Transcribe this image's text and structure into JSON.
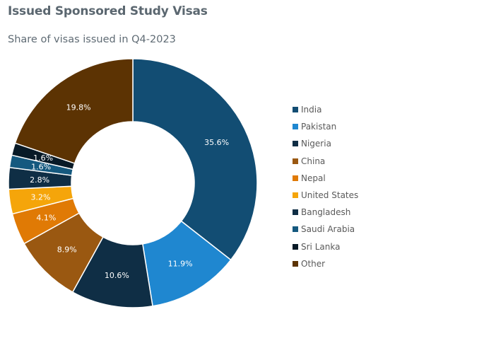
{
  "header": {
    "title": "Issued Sponsored Study Visas",
    "subtitle": "Share of visas issued in Q4-2023"
  },
  "chart_data": {
    "type": "pie",
    "title": "Issued Sponsored Study Visas",
    "subtitle": "Share of visas issued in Q4-2023",
    "donut": true,
    "legend_position": "right",
    "unit": "%",
    "categories": [
      "India",
      "Pakistan",
      "Nigeria",
      "China",
      "Nepal",
      "United States",
      "Bangladesh",
      "Saudi Arabia",
      "Sri Lanka",
      "Other"
    ],
    "values": [
      35.6,
      11.9,
      10.6,
      8.9,
      4.1,
      3.2,
      2.8,
      1.6,
      1.6,
      19.8
    ],
    "labels": [
      "35.6%",
      "11.9%",
      "10.6%",
      "8.9%",
      "4.1%",
      "3.2%",
      "2.8%",
      "1.6%",
      "1.6%",
      "19.8%"
    ],
    "colors": [
      "#124d73",
      "#1f87d0",
      "#0f2e45",
      "#9a5811",
      "#e07a05",
      "#f5a50a",
      "#0f2e45",
      "#15597f",
      "#081a27",
      "#5c3303"
    ]
  }
}
